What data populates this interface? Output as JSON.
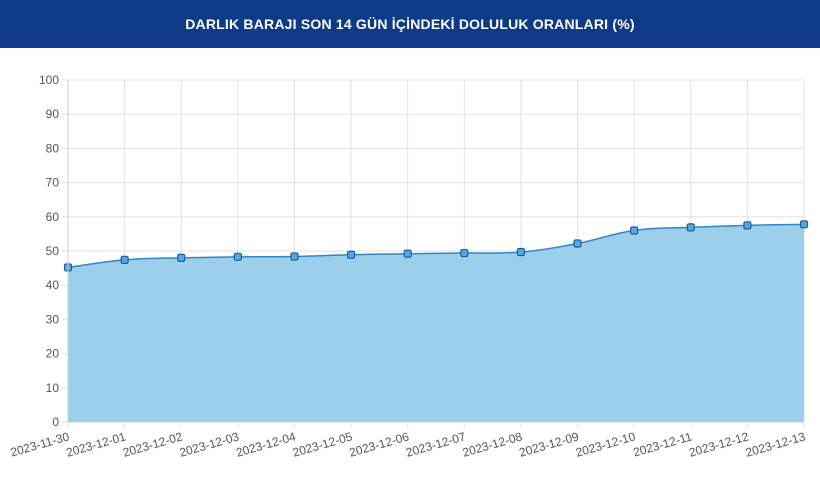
{
  "header": {
    "title": "DARLIK BARAJI SON 14 GÜN İÇİNDEKİ DOLULUK ORANLARI (%)"
  },
  "colors": {
    "header_bg": "#0e3a87",
    "area_fill": "#9ccfec",
    "line": "#2f86c8",
    "point_fill": "#5aa6dc",
    "point_stroke": "#1f5f9b",
    "grid": "#e2e2e2",
    "axis": "#cfcfcf",
    "tick_text": "#555555"
  },
  "chart_data": {
    "type": "area",
    "title": "DARLIK BARAJI SON 14 GÜN İÇİNDEKİ DOLULUK ORANLARI (%)",
    "xlabel": "",
    "ylabel": "",
    "ylim": [
      0,
      100
    ],
    "yticks": [
      0,
      10,
      20,
      30,
      40,
      50,
      60,
      70,
      80,
      90,
      100
    ],
    "grid": true,
    "categories": [
      "2023-11-30",
      "2023-12-01",
      "2023-12-02",
      "2023-12-03",
      "2023-12-04",
      "2023-12-05",
      "2023-12-06",
      "2023-12-07",
      "2023-12-08",
      "2023-12-09",
      "2023-12-10",
      "2023-12-11",
      "2023-12-12",
      "2023-12-13"
    ],
    "values": [
      45.2,
      47.4,
      48.0,
      48.3,
      48.4,
      48.9,
      49.2,
      49.4,
      49.7,
      52.2,
      56.0,
      56.9,
      57.5,
      57.8
    ]
  }
}
